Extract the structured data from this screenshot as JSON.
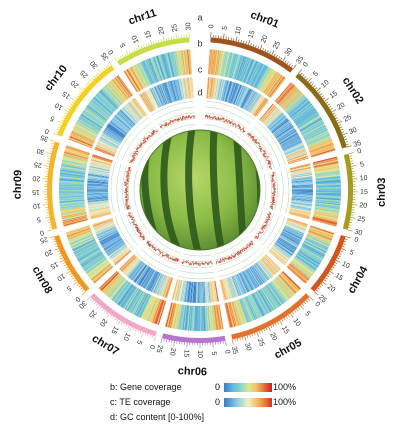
{
  "chart_data": {
    "type": "circos",
    "track_letters": [
      "a",
      "b",
      "c",
      "d"
    ],
    "chromosomes": [
      {
        "name": "chr01",
        "length": 35,
        "ticks": [
          0,
          5,
          10,
          15,
          20,
          25,
          30,
          35
        ],
        "color": "#a0521f"
      },
      {
        "name": "chr02",
        "length": 35,
        "ticks": [
          0,
          5,
          10,
          15,
          20,
          25,
          30,
          35
        ],
        "color": "#8b6b16"
      },
      {
        "name": "chr03",
        "length": 30,
        "ticks": [
          0,
          5,
          10,
          15,
          20,
          25,
          30
        ],
        "color": "#a89a1c"
      },
      {
        "name": "chr04",
        "length": 25,
        "ticks": [
          0,
          5,
          10,
          15,
          20,
          25
        ],
        "color": "#d4541c"
      },
      {
        "name": "chr05",
        "length": 35,
        "ticks": [
          0,
          5,
          10,
          15,
          20,
          25,
          30,
          35
        ],
        "color": "#e0722a"
      },
      {
        "name": "chr06",
        "length": 25,
        "ticks": [
          0,
          5,
          10,
          15,
          20,
          25
        ],
        "color": "#b774cc"
      },
      {
        "name": "chr07",
        "length": 30,
        "ticks": [
          0,
          5,
          10,
          15,
          20,
          25,
          30
        ],
        "color": "#f0a8c4"
      },
      {
        "name": "chr08",
        "length": 25,
        "ticks": [
          0,
          5,
          10,
          15,
          20,
          25
        ],
        "color": "#f0961e"
      },
      {
        "name": "chr09",
        "length": 35,
        "ticks": [
          0,
          5,
          10,
          15,
          20,
          25,
          30,
          35
        ],
        "color": "#f5b52a"
      },
      {
        "name": "chr10",
        "length": 35,
        "ticks": [
          0,
          5,
          10,
          15,
          20,
          25,
          30,
          35
        ],
        "color": "#f5d020"
      },
      {
        "name": "chr11",
        "length": 30,
        "ticks": [
          0,
          5,
          10,
          15,
          20,
          25,
          30
        ],
        "color": "#c8dc46"
      }
    ],
    "tracks": [
      {
        "id": "b",
        "name": "Gene coverage",
        "min": "0",
        "max": "100%"
      },
      {
        "id": "c",
        "name": "TE coverage",
        "min": "0",
        "max": "100%"
      },
      {
        "id": "d",
        "name": "GC content",
        "range": "[0-100%]"
      }
    ]
  },
  "legend": {
    "gene": {
      "label": "b: Gene coverage",
      "min": "0",
      "max": "100%"
    },
    "te": {
      "label": "c: TE coverage",
      "min": "0",
      "max": "100%"
    },
    "gc": {
      "label": "d: GC content  [0-100%]"
    }
  },
  "colors": {
    "gene_scale": [
      "#3a7ac8",
      "#5cb8e0",
      "#8fd6c8",
      "#d8e890",
      "#f4c060",
      "#e86a3a",
      "#c81e28"
    ],
    "te_scale": [
      "#3a7ac8",
      "#7cc8e8",
      "#f4f0c0",
      "#f4a84a",
      "#d8302a"
    ],
    "gc_line": "#c8503a",
    "gc_grid": "#4aa84a"
  },
  "center_image": "watermelon"
}
